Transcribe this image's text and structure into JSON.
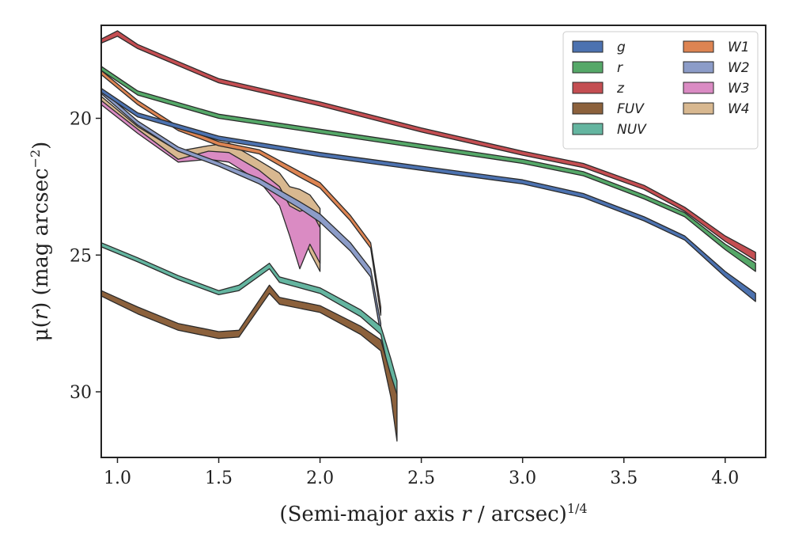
{
  "chart_data": {
    "type": "area",
    "xlabel_parts": [
      "(Semi-major axis ",
      "r",
      " / arcsec)",
      "1/4"
    ],
    "ylabel_parts": [
      "μ(",
      "r",
      ") (mag arcsec",
      "−2",
      ")"
    ],
    "xlim": [
      0.92,
      4.2
    ],
    "ylim": [
      32.4,
      16.6
    ],
    "y_inverted": true,
    "xticks": [
      1.0,
      1.5,
      2.0,
      2.5,
      3.0,
      3.5,
      4.0
    ],
    "xtick_labels": [
      "1.0",
      "1.5",
      "2.0",
      "2.5",
      "3.0",
      "3.5",
      "4.0"
    ],
    "yticks": [
      20,
      25,
      30
    ],
    "ytick_labels": [
      "20",
      "25",
      "30"
    ],
    "grid": false,
    "legend": {
      "position": "top-right",
      "columns": 2
    },
    "series": [
      {
        "name": "g",
        "color": "#4c72b0",
        "data": [
          [
            0.92,
            18.9,
            19.05
          ],
          [
            1.1,
            19.8,
            19.95
          ],
          [
            1.5,
            20.65,
            20.8
          ],
          [
            2.0,
            21.25,
            21.4
          ],
          [
            2.5,
            21.75,
            21.9
          ],
          [
            3.0,
            22.25,
            22.4
          ],
          [
            3.3,
            22.75,
            22.9
          ],
          [
            3.6,
            23.6,
            23.75
          ],
          [
            3.8,
            24.3,
            24.45
          ],
          [
            4.0,
            25.6,
            25.8
          ],
          [
            4.15,
            26.4,
            26.7
          ]
        ]
      },
      {
        "name": "r",
        "color": "#55a868",
        "data": [
          [
            0.92,
            18.1,
            18.25
          ],
          [
            1.1,
            19.0,
            19.15
          ],
          [
            1.5,
            19.85,
            20.0
          ],
          [
            2.0,
            20.4,
            20.55
          ],
          [
            2.5,
            20.95,
            21.1
          ],
          [
            3.0,
            21.5,
            21.65
          ],
          [
            3.3,
            21.95,
            22.1
          ],
          [
            3.6,
            22.8,
            22.95
          ],
          [
            3.8,
            23.45,
            23.6
          ],
          [
            4.0,
            24.6,
            24.8
          ],
          [
            4.15,
            25.3,
            25.6
          ]
        ]
      },
      {
        "name": "z",
        "color": "#c44e52",
        "data": [
          [
            0.92,
            17.1,
            17.25
          ],
          [
            1.0,
            16.8,
            17.0
          ],
          [
            1.1,
            17.3,
            17.45
          ],
          [
            1.5,
            18.55,
            18.7
          ],
          [
            2.0,
            19.4,
            19.55
          ],
          [
            2.5,
            20.35,
            20.5
          ],
          [
            3.0,
            21.2,
            21.35
          ],
          [
            3.3,
            21.65,
            21.8
          ],
          [
            3.6,
            22.45,
            22.6
          ],
          [
            3.8,
            23.25,
            23.4
          ],
          [
            4.0,
            24.3,
            24.5
          ],
          [
            4.15,
            24.9,
            25.2
          ]
        ]
      },
      {
        "name": "FUV",
        "color": "#8c613c",
        "data": [
          [
            0.92,
            26.3,
            26.5
          ],
          [
            1.1,
            26.9,
            27.15
          ],
          [
            1.3,
            27.5,
            27.75
          ],
          [
            1.5,
            27.8,
            28.05
          ],
          [
            1.6,
            27.75,
            28.0
          ],
          [
            1.75,
            26.1,
            26.4
          ],
          [
            1.8,
            26.55,
            26.8
          ],
          [
            2.0,
            26.85,
            27.1
          ],
          [
            2.2,
            27.6,
            27.9
          ],
          [
            2.3,
            28.1,
            28.5
          ],
          [
            2.35,
            29.4,
            30.2
          ],
          [
            2.38,
            30.1,
            31.8
          ]
        ]
      },
      {
        "name": "NUV",
        "color": "#64b5a0",
        "data": [
          [
            0.92,
            24.55,
            24.7
          ],
          [
            1.1,
            25.1,
            25.25
          ],
          [
            1.3,
            25.75,
            25.9
          ],
          [
            1.5,
            26.3,
            26.45
          ],
          [
            1.6,
            26.1,
            26.3
          ],
          [
            1.75,
            25.3,
            25.5
          ],
          [
            1.8,
            25.8,
            26.0
          ],
          [
            2.0,
            26.2,
            26.4
          ],
          [
            2.2,
            27.0,
            27.25
          ],
          [
            2.3,
            27.6,
            27.9
          ],
          [
            2.35,
            28.8,
            29.6
          ],
          [
            2.38,
            29.6,
            31.5
          ]
        ]
      },
      {
        "name": "W1",
        "color": "#dd8452",
        "data": [
          [
            0.92,
            18.25,
            18.4
          ],
          [
            1.1,
            19.35,
            19.5
          ],
          [
            1.3,
            20.3,
            20.45
          ],
          [
            1.5,
            20.85,
            21.0
          ],
          [
            1.7,
            21.15,
            21.3
          ],
          [
            1.9,
            21.95,
            22.15
          ],
          [
            2.0,
            22.35,
            22.55
          ],
          [
            2.15,
            23.55,
            23.75
          ],
          [
            2.25,
            24.55,
            24.75
          ],
          [
            2.3,
            26.9,
            27.2
          ]
        ]
      },
      {
        "name": "W2",
        "color": "#8c9cc8",
        "data": [
          [
            0.92,
            18.95,
            19.1
          ],
          [
            1.1,
            20.1,
            20.25
          ],
          [
            1.3,
            21.05,
            21.2
          ],
          [
            1.5,
            21.6,
            21.75
          ],
          [
            1.7,
            22.2,
            22.4
          ],
          [
            1.9,
            23.05,
            23.3
          ],
          [
            2.0,
            23.5,
            23.8
          ],
          [
            2.15,
            24.55,
            24.85
          ],
          [
            2.25,
            25.5,
            25.8
          ],
          [
            2.3,
            27.5,
            27.9
          ]
        ]
      },
      {
        "name": "W3",
        "color": "#da8bc3",
        "data": [
          [
            0.92,
            19.35,
            19.5
          ],
          [
            1.1,
            20.4,
            20.55
          ],
          [
            1.3,
            21.5,
            21.6
          ],
          [
            1.45,
            21.2,
            21.5
          ],
          [
            1.55,
            21.25,
            21.6
          ],
          [
            1.7,
            21.9,
            22.3
          ],
          [
            1.8,
            22.5,
            23.2
          ],
          [
            1.85,
            23.2,
            24.3
          ],
          [
            1.9,
            23.4,
            25.5
          ],
          [
            1.95,
            23.3,
            24.6
          ],
          [
            2.0,
            24.0,
            25.3
          ]
        ]
      },
      {
        "name": "W4",
        "color": "#d8b890",
        "data": [
          [
            0.92,
            19.2,
            19.35
          ],
          [
            1.1,
            20.3,
            20.45
          ],
          [
            1.3,
            21.2,
            21.5
          ],
          [
            1.45,
            21.0,
            21.35
          ],
          [
            1.55,
            20.9,
            21.35
          ],
          [
            1.7,
            21.55,
            21.95
          ],
          [
            1.8,
            22.0,
            22.7
          ],
          [
            1.85,
            22.5,
            23.4
          ],
          [
            1.9,
            22.6,
            23.9
          ],
          [
            1.95,
            22.8,
            24.9
          ],
          [
            2.0,
            23.3,
            25.6
          ]
        ]
      }
    ]
  }
}
